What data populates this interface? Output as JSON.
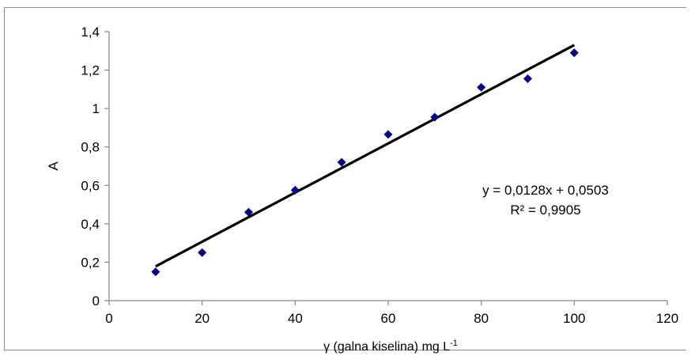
{
  "chart_data": {
    "type": "scatter",
    "x": [
      10,
      20,
      30,
      40,
      50,
      60,
      70,
      80,
      90,
      100
    ],
    "y": [
      0.15,
      0.25,
      0.46,
      0.575,
      0.72,
      0.865,
      0.955,
      1.11,
      1.155,
      1.29
    ],
    "trendline": {
      "type": "linear",
      "slope": 0.0128,
      "intercept": 0.0503,
      "x_range": [
        10,
        100
      ]
    },
    "equation_text": "y = 0,0128x + 0,0503",
    "r2_text": "R² = 0,9905",
    "xlabel": "γ (galna kiselina) mg L",
    "xlabel_sup": "-1",
    "ylabel": "A",
    "xlim": [
      0,
      120
    ],
    "ylim": [
      0,
      1.4
    ],
    "x_ticks": [
      "0",
      "20",
      "40",
      "60",
      "80",
      "100",
      "120"
    ],
    "y_ticks": [
      "0",
      "0,2",
      "0,4",
      "0,6",
      "0,8",
      "1",
      "1,2",
      "1,4"
    ],
    "grid": false,
    "legend": "none",
    "colors": {
      "marker": "#00008b",
      "trendline": "#000000",
      "axis": "#868686"
    }
  }
}
